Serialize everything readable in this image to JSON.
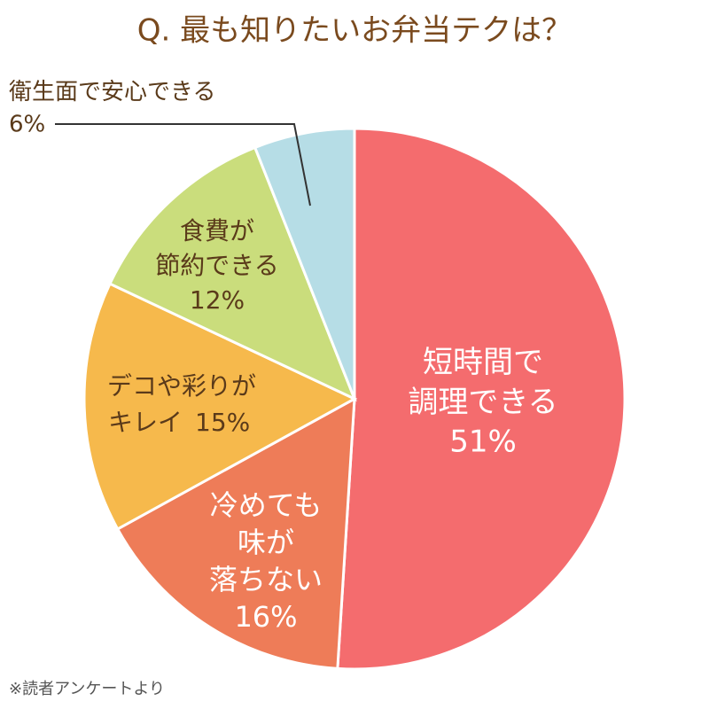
{
  "chart_data": {
    "type": "pie",
    "title": "Q. 最も知りたいお弁当テクは？",
    "categories": [
      "短時間で\n調理できる",
      "冷めても\n味が\n落ちない",
      "デコや彩りが\nキレイ",
      "食費が\n節約できる",
      "衛生面で安心できる"
    ],
    "values": [
      51,
      16,
      15,
      12,
      6
    ],
    "value_labels": [
      "51%",
      "16%",
      "15%",
      "12%",
      "6%"
    ],
    "colors": [
      "#f46c6e",
      "#ee7c58",
      "#f6b94c",
      "#cadd7c",
      "#b6dde6"
    ],
    "note": "※読者アンケートより"
  }
}
